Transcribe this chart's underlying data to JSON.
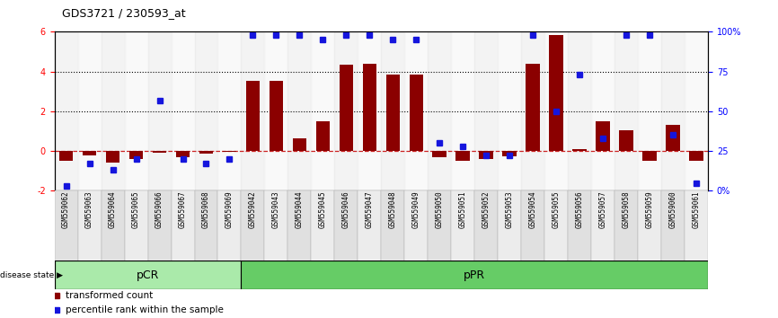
{
  "title": "GDS3721 / 230593_at",
  "samples": [
    "GSM559062",
    "GSM559063",
    "GSM559064",
    "GSM559065",
    "GSM559066",
    "GSM559067",
    "GSM559068",
    "GSM559069",
    "GSM559042",
    "GSM559043",
    "GSM559044",
    "GSM559045",
    "GSM559046",
    "GSM559047",
    "GSM559048",
    "GSM559049",
    "GSM559050",
    "GSM559051",
    "GSM559052",
    "GSM559053",
    "GSM559054",
    "GSM559055",
    "GSM559056",
    "GSM559057",
    "GSM559058",
    "GSM559059",
    "GSM559060",
    "GSM559061"
  ],
  "transformed_count": [
    -0.5,
    -0.2,
    -0.6,
    -0.4,
    -0.1,
    -0.3,
    -0.15,
    -0.05,
    3.55,
    3.55,
    0.65,
    1.5,
    4.35,
    4.4,
    3.85,
    3.85,
    -0.3,
    -0.5,
    -0.4,
    -0.25,
    4.4,
    5.85,
    0.1,
    1.5,
    1.05,
    -0.5,
    1.3,
    -0.5
  ],
  "percentile_rank": [
    3,
    17,
    13,
    20,
    57,
    20,
    17,
    20,
    98,
    98,
    98,
    95,
    98,
    98,
    95,
    95,
    30,
    28,
    22,
    22,
    98,
    50,
    73,
    33,
    98,
    98,
    35,
    5
  ],
  "pCR_count": 8,
  "pPR_count": 20,
  "bar_color": "#8B0000",
  "dot_color": "#1515dd",
  "ylim_left": [
    -2,
    6
  ],
  "ylim_right": [
    0,
    100
  ],
  "yticks_left": [
    -2,
    0,
    2,
    4,
    6
  ],
  "yticks_right": [
    0,
    25,
    50,
    75,
    100
  ],
  "ytick_right_labels": [
    "0%",
    "25",
    "50",
    "75",
    "100%"
  ],
  "pCR_color": "#aaeaaa",
  "pPR_color": "#66cc66"
}
